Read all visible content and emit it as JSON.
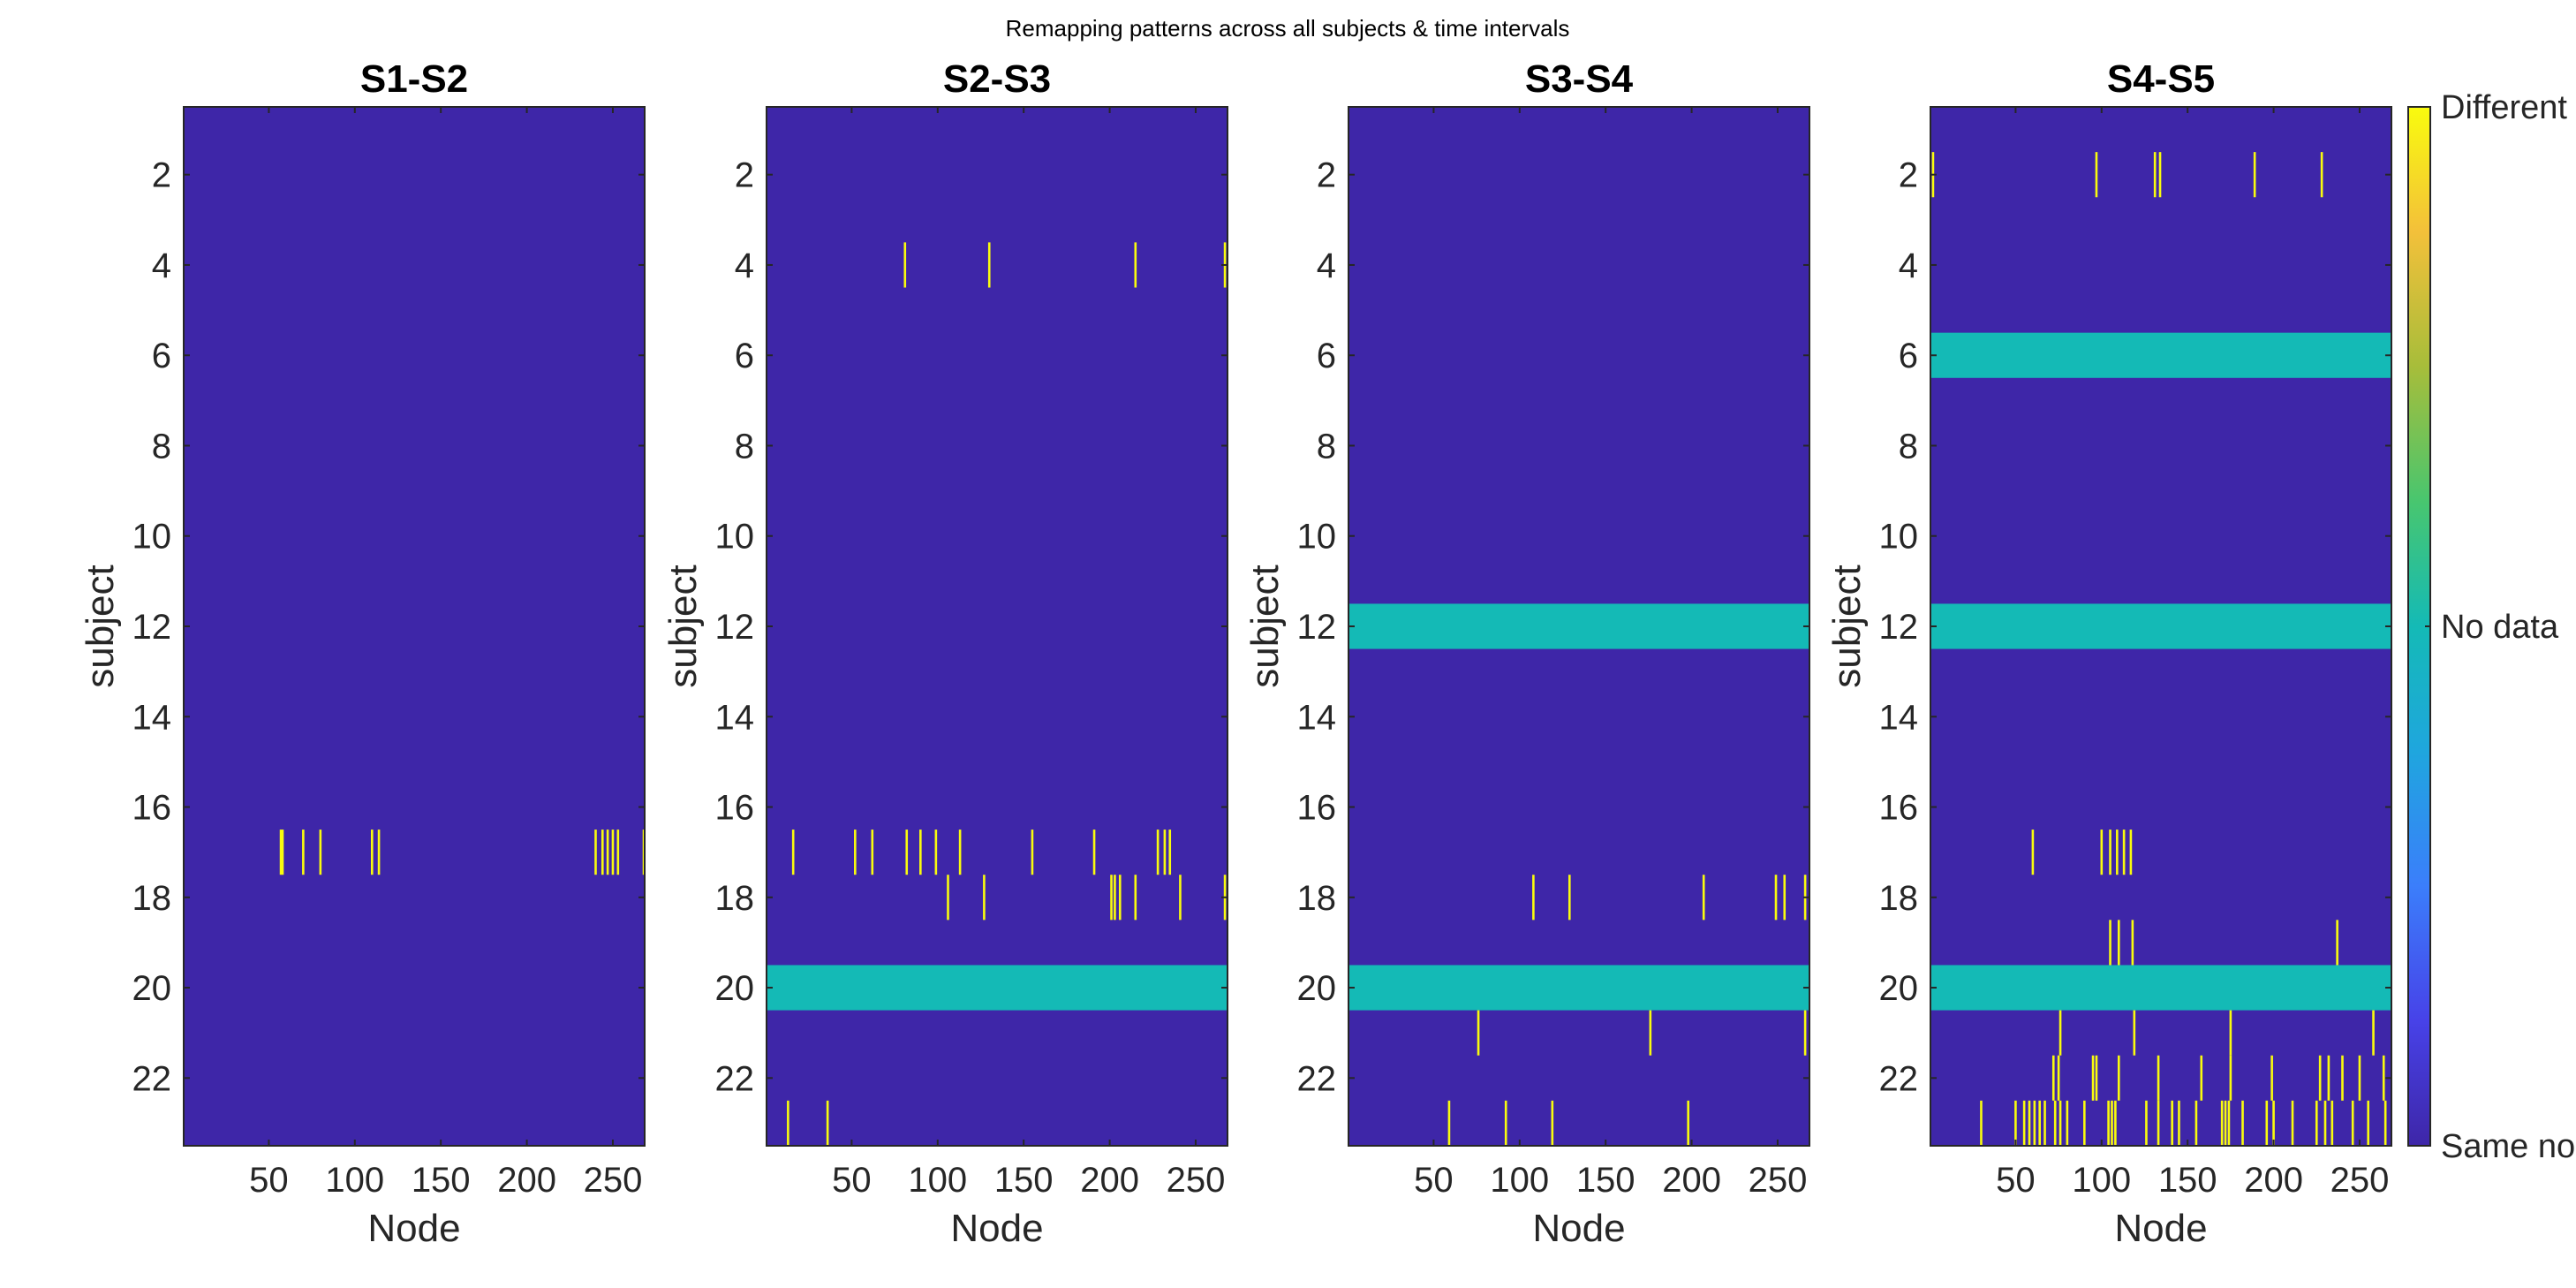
{
  "figure_title": "Remapping patterns across all subjects & time intervals",
  "colors": {
    "same": "#3E26A8",
    "no_data": "#14BAB6",
    "different": "#F9FB0E",
    "axis": "#262626"
  },
  "colorbar": {
    "labels": [
      "Different",
      "No data",
      "Same node"
    ],
    "colormap": "parula"
  },
  "chart_data": [
    {
      "type": "heatmap",
      "title": "S1-S2",
      "xlabel": "Node",
      "ylabel": "subject",
      "xlim": [
        0.5,
        268.5
      ],
      "ylim": [
        0.5,
        23.5
      ],
      "xticks": [
        50,
        100,
        150,
        200,
        250
      ],
      "yticks": [
        2,
        4,
        6,
        8,
        10,
        12,
        14,
        16,
        18,
        20,
        22
      ],
      "no_data_rows": [],
      "different_cells": [
        {
          "subject": 17,
          "nodes": [
            57,
            58,
            70,
            80,
            110,
            114,
            240,
            244,
            247,
            250,
            253,
            268
          ]
        }
      ]
    },
    {
      "type": "heatmap",
      "title": "S2-S3",
      "xlabel": "Node",
      "ylabel": "subject",
      "xlim": [
        0.5,
        268.5
      ],
      "ylim": [
        0.5,
        23.5
      ],
      "xticks": [
        50,
        100,
        150,
        200,
        250
      ],
      "yticks": [
        2,
        4,
        6,
        8,
        10,
        12,
        14,
        16,
        18,
        20,
        22
      ],
      "no_data_rows": [
        20
      ],
      "different_cells": [
        {
          "subject": 4,
          "nodes": [
            81,
            130,
            215,
            267
          ]
        },
        {
          "subject": 17,
          "nodes": [
            16,
            52,
            62,
            82,
            90,
            99,
            113,
            155,
            191,
            228,
            232,
            235
          ]
        },
        {
          "subject": 18,
          "nodes": [
            106,
            127,
            201,
            203,
            206,
            215,
            241,
            267
          ]
        },
        {
          "subject": 23,
          "nodes": [
            13,
            36
          ]
        }
      ]
    },
    {
      "type": "heatmap",
      "title": "S3-S4",
      "xlabel": "Node",
      "ylabel": "subject",
      "xlim": [
        0.5,
        268.5
      ],
      "ylim": [
        0.5,
        23.5
      ],
      "xticks": [
        50,
        100,
        150,
        200,
        250
      ],
      "yticks": [
        2,
        4,
        6,
        8,
        10,
        12,
        14,
        16,
        18,
        20,
        22
      ],
      "no_data_rows": [
        12,
        20
      ],
      "different_cells": [
        {
          "subject": 18,
          "nodes": [
            108,
            129,
            207,
            249,
            254,
            266
          ]
        },
        {
          "subject": 21,
          "nodes": [
            76,
            176,
            266
          ]
        },
        {
          "subject": 23,
          "nodes": [
            59,
            92,
            119,
            198
          ]
        }
      ]
    },
    {
      "type": "heatmap",
      "title": "S4-S5",
      "xlabel": "Node",
      "ylabel": "subject",
      "xlim": [
        0.5,
        268.5
      ],
      "ylim": [
        0.5,
        23.5
      ],
      "xticks": [
        50,
        100,
        150,
        200,
        250
      ],
      "yticks": [
        2,
        4,
        6,
        8,
        10,
        12,
        14,
        16,
        18,
        20,
        22
      ],
      "no_data_rows": [
        6,
        12,
        20
      ],
      "different_cells": [
        {
          "subject": 2,
          "nodes": [
            2,
            97,
            131,
            134,
            189,
            228
          ]
        },
        {
          "subject": 17,
          "nodes": [
            60,
            100,
            105,
            109,
            113,
            117
          ]
        },
        {
          "subject": 19,
          "nodes": [
            105,
            110,
            118,
            237
          ]
        },
        {
          "subject": 21,
          "nodes": [
            76,
            119,
            175,
            258
          ]
        },
        {
          "subject": 22,
          "nodes": [
            72,
            75,
            95,
            97,
            110,
            133,
            158,
            175,
            199,
            227,
            232,
            240,
            250,
            264
          ]
        },
        {
          "subject": 23,
          "nodes": [
            30,
            50,
            55,
            58,
            61,
            64,
            67,
            73,
            76,
            80,
            90,
            104,
            106,
            108,
            126,
            133,
            141,
            145,
            155,
            170,
            172,
            174,
            182,
            196,
            200,
            211,
            225,
            230,
            234,
            246,
            255,
            265
          ]
        }
      ]
    }
  ]
}
